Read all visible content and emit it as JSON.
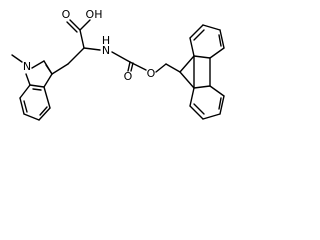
{
  "atoms": [
    {
      "label": "OH"
    },
    {
      "label": "O"
    },
    {
      "label": "H"
    },
    {
      "label": "N"
    },
    {
      "label": "O"
    },
    {
      "label": "O"
    },
    {
      "label": "N"
    }
  ]
}
